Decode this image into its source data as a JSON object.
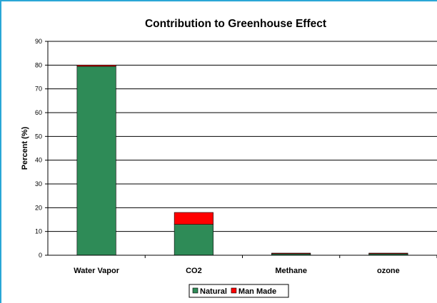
{
  "chart_data": {
    "type": "bar",
    "stacked": true,
    "title": "Contribution to Greenhouse Effect",
    "xlabel": "",
    "ylabel": "Percent (%)",
    "ylim": [
      0,
      90
    ],
    "yticks": [
      0,
      10,
      20,
      30,
      40,
      50,
      60,
      70,
      80,
      90
    ],
    "grid": true,
    "legend": "bottom",
    "categories": [
      "Water Vapor",
      "CO2",
      "Methane",
      "ozone"
    ],
    "series": [
      {
        "name": "Natural",
        "color": "#2e8b57",
        "values": [
          79.5,
          13,
          0.6,
          0.6
        ]
      },
      {
        "name": "Man Made",
        "color": "#ff0000",
        "values": [
          0.5,
          5,
          0.3,
          0.3
        ]
      }
    ]
  }
}
